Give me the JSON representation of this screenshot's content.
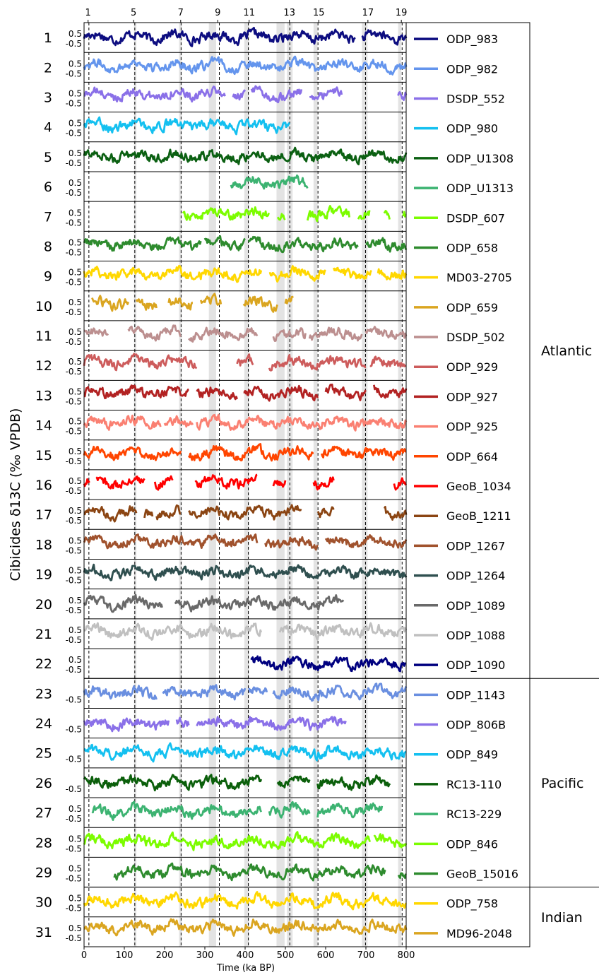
{
  "chart_data": {
    "type": "line",
    "ylabel": "Cibicides δ13C (‰ VPDB)",
    "xlabel": "Time (ka BP)",
    "xlim": [
      0,
      800
    ],
    "xticks": [
      "0",
      "100",
      "200",
      "300",
      "400",
      "500",
      "600",
      "700",
      "800"
    ],
    "mis_labels": [
      {
        "label": "1",
        "x": 10
      },
      {
        "label": "5",
        "x": 123
      },
      {
        "label": "7",
        "x": 240
      },
      {
        "label": "9",
        "x": 332
      },
      {
        "label": "11",
        "x": 410
      },
      {
        "label": "13",
        "x": 510
      },
      {
        "label": "15",
        "x": 583
      },
      {
        "label": "17",
        "x": 705
      },
      {
        "label": "19",
        "x": 788
      }
    ],
    "dashed_lines": [
      12,
      126,
      241,
      336,
      408,
      511,
      581,
      699,
      790
    ],
    "shaded_bands": [
      [
        124,
        130
      ],
      [
        236,
        243
      ],
      [
        310,
        328
      ],
      [
        398,
        410
      ],
      [
        478,
        498
      ],
      [
        504,
        518
      ],
      [
        570,
        580
      ],
      [
        690,
        704
      ],
      [
        780,
        788
      ]
    ],
    "tick_labels": {
      "upper": "0.5",
      "lower": "-0.5"
    },
    "basins": [
      {
        "name": "Atlantic",
        "first": 1,
        "last": 22
      },
      {
        "name": "Pacific",
        "first": 23,
        "last": 29
      },
      {
        "name": "Indian",
        "first": 30,
        "last": 31
      }
    ],
    "series": [
      {
        "index": "1",
        "name": "ODP_983",
        "color": "#0d0d80",
        "range": [
          0,
          800
        ],
        "gaps": [
          [
            675,
            690
          ]
        ],
        "upper_tick": true,
        "lower_tick": true,
        "level": 0.1
      },
      {
        "index": "2",
        "name": "ODP_982",
        "color": "#6495ed",
        "range": [
          0,
          800
        ],
        "gaps": [],
        "upper_tick": true,
        "lower_tick": true,
        "level": 0.2
      },
      {
        "index": "3",
        "name": "DSDP_552",
        "color": "#8a70e8",
        "range": [
          0,
          800
        ],
        "gaps": [
          [
            350,
            370
          ],
          [
            400,
            415
          ],
          [
            540,
            560
          ],
          [
            640,
            780
          ]
        ],
        "upper_tick": true,
        "lower_tick": true,
        "level": 0.3
      },
      {
        "index": "4",
        "name": "ODP_980",
        "color": "#14c0f0",
        "range": [
          0,
          510
        ],
        "gaps": [],
        "upper_tick": true,
        "lower_tick": true,
        "level": 0.2
      },
      {
        "index": "5",
        "name": "ODP_U1308",
        "color": "#0b6012",
        "range": [
          0,
          800
        ],
        "gaps": [],
        "upper_tick": true,
        "lower_tick": true,
        "level": 0.1
      },
      {
        "index": "6",
        "name": "ODP_U1313",
        "color": "#3cb371",
        "range": [
          365,
          555
        ],
        "gaps": [],
        "upper_tick": true,
        "lower_tick": true,
        "level": 0.4
      },
      {
        "index": "7",
        "name": "DSDP_607",
        "color": "#7cfc00",
        "range": [
          245,
          800
        ],
        "gaps": [
          [
            460,
            480
          ],
          [
            500,
            555
          ],
          [
            660,
            680
          ],
          [
            710,
            745
          ],
          [
            760,
            790
          ]
        ],
        "upper_tick": true,
        "lower_tick": true,
        "level": 0.3
      },
      {
        "index": "8",
        "name": "ODP_658",
        "color": "#2e8b2e",
        "range": [
          0,
          800
        ],
        "gaps": [
          [
            290,
            300
          ],
          [
            400,
            408
          ],
          [
            680,
            700
          ]
        ],
        "upper_tick": true,
        "lower_tick": true,
        "level": 0.2
      },
      {
        "index": "9",
        "name": "MD03-2705",
        "color": "#ffd700",
        "range": [
          0,
          800
        ],
        "gaps": [
          [
            440,
            460
          ],
          [
            600,
            620
          ],
          [
            715,
            730
          ]
        ],
        "upper_tick": true,
        "lower_tick": true,
        "level": 0.3
      },
      {
        "index": "10",
        "name": "ODP_659",
        "color": "#daa520",
        "range": [
          20,
          520
        ],
        "gaps": [
          [
            110,
            130
          ],
          [
            180,
            210
          ],
          [
            270,
            290
          ],
          [
            340,
            395
          ],
          [
            480,
            500
          ]
        ],
        "upper_tick": true,
        "lower_tick": true,
        "level": 0.3
      },
      {
        "index": "11",
        "name": "DSDP_502",
        "color": "#bc8f8f",
        "range": [
          0,
          800
        ],
        "gaps": [
          [
            60,
            110
          ],
          [
            240,
            260
          ],
          [
            430,
            470
          ],
          [
            550,
            560
          ],
          [
            690,
            700
          ]
        ],
        "upper_tick": true,
        "lower_tick": true,
        "level": 0.2
      },
      {
        "index": "12",
        "name": "ODP_929",
        "color": "#cd5c5c",
        "range": [
          0,
          800
        ],
        "gaps": [
          [
            280,
            380
          ],
          [
            420,
            460
          ],
          [
            700,
            710
          ]
        ],
        "upper_tick": true,
        "lower_tick": true,
        "level": 0.4
      },
      {
        "index": "13",
        "name": "ODP_927",
        "color": "#b22222",
        "range": [
          0,
          800
        ],
        "gaps": [
          [
            260,
            280
          ],
          [
            380,
            395
          ],
          [
            580,
            600
          ],
          [
            700,
            720
          ]
        ],
        "upper_tick": true,
        "lower_tick": true,
        "level": 0.3
      },
      {
        "index": "14",
        "name": "ODP_925",
        "color": "#fa8072",
        "range": [
          0,
          800
        ],
        "gaps": [
          [
            190,
            200
          ],
          [
            270,
            280
          ]
        ],
        "upper_tick": true,
        "lower_tick": true,
        "level": 0.3
      },
      {
        "index": "15",
        "name": "ODP_664",
        "color": "#ff4500",
        "range": [
          0,
          800
        ],
        "gaps": [
          [
            240,
            260
          ],
          [
            570,
            590
          ]
        ],
        "upper_tick": true,
        "lower_tick": true,
        "level": 0.2
      },
      {
        "index": "16",
        "name": "GeoB_1034",
        "color": "#ff0000",
        "range": [
          0,
          800
        ],
        "gaps": [
          [
            15,
            30
          ],
          [
            150,
            175
          ],
          [
            220,
            275
          ],
          [
            430,
            470
          ],
          [
            500,
            570
          ],
          [
            620,
            770
          ]
        ],
        "upper_tick": true,
        "lower_tick": true,
        "level": 0.3
      },
      {
        "index": "17",
        "name": "GeoB_1211",
        "color": "#8b4513",
        "range": [
          0,
          800
        ],
        "gaps": [
          [
            130,
            150
          ],
          [
            170,
            180
          ],
          [
            240,
            260
          ],
          [
            540,
            580
          ],
          [
            620,
            745
          ]
        ],
        "upper_tick": true,
        "lower_tick": true,
        "level": 0.2
      },
      {
        "index": "18",
        "name": "ODP_1267",
        "color": "#a0522d",
        "range": [
          0,
          800
        ],
        "gaps": [
          [
            430,
            450
          ],
          [
            580,
            600
          ]
        ],
        "upper_tick": true,
        "lower_tick": true,
        "level": 0.3
      },
      {
        "index": "19",
        "name": "ODP_1264",
        "color": "#2f4f4f",
        "range": [
          0,
          800
        ],
        "gaps": [],
        "upper_tick": true,
        "lower_tick": true,
        "level": 0.2
      },
      {
        "index": "20",
        "name": "ODP_1089",
        "color": "#696969",
        "range": [
          0,
          645
        ],
        "gaps": [
          [
            195,
            225
          ]
        ],
        "upper_tick": true,
        "lower_tick": true,
        "level": 0.1
      },
      {
        "index": "21",
        "name": "ODP_1088",
        "color": "#c0c0c0",
        "range": [
          0,
          800
        ],
        "gaps": [
          [
            440,
            485
          ]
        ],
        "upper_tick": true,
        "lower_tick": true,
        "level": 0.3
      },
      {
        "index": "22",
        "name": "ODP_1090",
        "color": "#00007f",
        "range": [
          415,
          800
        ],
        "gaps": [],
        "upper_tick": true,
        "lower_tick": true,
        "level": 0.0
      },
      {
        "index": "23",
        "name": "ODP_1143",
        "color": "#6a8fe0",
        "range": [
          0,
          800
        ],
        "gaps": [
          [
            180,
            195
          ],
          [
            400,
            410
          ],
          [
            455,
            470
          ]
        ],
        "upper_tick": false,
        "lower_tick": true,
        "level": 0.1
      },
      {
        "index": "24",
        "name": "ODP_806B",
        "color": "#8a70e8",
        "range": [
          0,
          650
        ],
        "gaps": [
          [
            210,
            230
          ],
          [
            260,
            280
          ]
        ],
        "upper_tick": false,
        "lower_tick": true,
        "level": 0.0
      },
      {
        "index": "25",
        "name": "ODP_849",
        "color": "#14c0f0",
        "range": [
          0,
          800
        ],
        "gaps": [],
        "upper_tick": false,
        "lower_tick": true,
        "level": 0.1
      },
      {
        "index": "26",
        "name": "RC13-110",
        "color": "#0b5f0b",
        "range": [
          0,
          760
        ],
        "gaps": [
          [
            440,
            480
          ],
          [
            560,
            580
          ]
        ],
        "upper_tick": false,
        "lower_tick": true,
        "level": 0.0
      },
      {
        "index": "27",
        "name": "RC13-229",
        "color": "#3cb371",
        "range": [
          20,
          740
        ],
        "gaps": [
          [
            440,
            460
          ],
          [
            560,
            580
          ]
        ],
        "upper_tick": true,
        "lower_tick": true,
        "level": 0.2
      },
      {
        "index": "28",
        "name": "ODP_846",
        "color": "#7cfc00",
        "range": [
          0,
          800
        ],
        "gaps": [
          [
            710,
            720
          ]
        ],
        "upper_tick": true,
        "lower_tick": true,
        "level": 0.1
      },
      {
        "index": "29",
        "name": "GeoB_15016",
        "color": "#2e8b2e",
        "range": [
          75,
          800
        ],
        "gaps": [
          [
            750,
            780
          ]
        ],
        "upper_tick": true,
        "lower_tick": true,
        "level": 0.0
      },
      {
        "index": "30",
        "name": "ODP_758",
        "color": "#ffd700",
        "range": [
          0,
          800
        ],
        "gaps": [],
        "upper_tick": true,
        "lower_tick": true,
        "level": 0.1
      },
      {
        "index": "31",
        "name": "MD96-2048",
        "color": "#daa520",
        "range": [
          0,
          800
        ],
        "gaps": [],
        "upper_tick": true,
        "lower_tick": true,
        "level": 0.6
      }
    ]
  }
}
